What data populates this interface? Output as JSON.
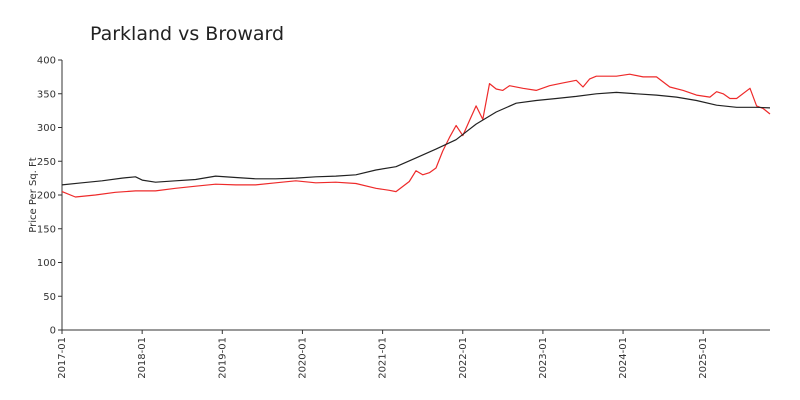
{
  "chart_data": {
    "type": "line",
    "title": "Parkland vs Broward",
    "xlabel": "",
    "ylabel": "Price Per Sq. Ft",
    "ylim": [
      0,
      400
    ],
    "yticks": [
      0,
      50,
      100,
      150,
      200,
      250,
      300,
      350,
      400
    ],
    "xticks": [
      "2017-01",
      "2018-01",
      "2019-01",
      "2020-01",
      "2021-01",
      "2022-01",
      "2023-01",
      "2024-01",
      "2025-01"
    ],
    "xlim": [
      "2017-01",
      "2025-11"
    ],
    "grid": false,
    "colors": {
      "red_series": "#ee2a2a",
      "black_series": "#222222"
    },
    "series": [
      {
        "key": "red_series",
        "points": [
          [
            "2017-01",
            205
          ],
          [
            "2017-03",
            197
          ],
          [
            "2017-06",
            200
          ],
          [
            "2017-09",
            204
          ],
          [
            "2017-12",
            206
          ],
          [
            "2018-03",
            206
          ],
          [
            "2018-06",
            210
          ],
          [
            "2018-09",
            213
          ],
          [
            "2018-12",
            216
          ],
          [
            "2019-03",
            215
          ],
          [
            "2019-06",
            215
          ],
          [
            "2019-09",
            218
          ],
          [
            "2019-12",
            221
          ],
          [
            "2020-03",
            218
          ],
          [
            "2020-06",
            219
          ],
          [
            "2020-09",
            217
          ],
          [
            "2020-12",
            210
          ],
          [
            "2021-02",
            207
          ],
          [
            "2021-03",
            205
          ],
          [
            "2021-05",
            220
          ],
          [
            "2021-06",
            236
          ],
          [
            "2021-07",
            230
          ],
          [
            "2021-08",
            233
          ],
          [
            "2021-09",
            240
          ],
          [
            "2021-10",
            265
          ],
          [
            "2021-11",
            285
          ],
          [
            "2021-12",
            303
          ],
          [
            "2022-01",
            288
          ],
          [
            "2022-02",
            310
          ],
          [
            "2022-03",
            332
          ],
          [
            "2022-04",
            312
          ],
          [
            "2022-05",
            365
          ],
          [
            "2022-06",
            357
          ],
          [
            "2022-07",
            355
          ],
          [
            "2022-08",
            362
          ],
          [
            "2022-10",
            358
          ],
          [
            "2022-12",
            355
          ],
          [
            "2023-02",
            362
          ],
          [
            "2023-04",
            366
          ],
          [
            "2023-06",
            370
          ],
          [
            "2023-07",
            360
          ],
          [
            "2023-08",
            372
          ],
          [
            "2023-09",
            376
          ],
          [
            "2023-12",
            376
          ],
          [
            "2024-02",
            379
          ],
          [
            "2024-04",
            375
          ],
          [
            "2024-06",
            375
          ],
          [
            "2024-08",
            360
          ],
          [
            "2024-10",
            355
          ],
          [
            "2024-12",
            348
          ],
          [
            "2025-02",
            345
          ],
          [
            "2025-03",
            353
          ],
          [
            "2025-04",
            350
          ],
          [
            "2025-05",
            343
          ],
          [
            "2025-06",
            343
          ],
          [
            "2025-08",
            358
          ],
          [
            "2025-09",
            332
          ],
          [
            "2025-10",
            328
          ],
          [
            "2025-11",
            320
          ]
        ]
      },
      {
        "key": "black_series",
        "points": [
          [
            "2017-01",
            215
          ],
          [
            "2017-04",
            218
          ],
          [
            "2017-07",
            221
          ],
          [
            "2017-10",
            225
          ],
          [
            "2017-12",
            227
          ],
          [
            "2018-01",
            222
          ],
          [
            "2018-03",
            219
          ],
          [
            "2018-06",
            221
          ],
          [
            "2018-09",
            223
          ],
          [
            "2018-12",
            228
          ],
          [
            "2019-03",
            226
          ],
          [
            "2019-06",
            224
          ],
          [
            "2019-09",
            224
          ],
          [
            "2019-12",
            225
          ],
          [
            "2020-03",
            227
          ],
          [
            "2020-06",
            228
          ],
          [
            "2020-09",
            230
          ],
          [
            "2020-12",
            237
          ],
          [
            "2021-03",
            242
          ],
          [
            "2021-06",
            255
          ],
          [
            "2021-09",
            268
          ],
          [
            "2021-12",
            282
          ],
          [
            "2022-03",
            305
          ],
          [
            "2022-06",
            323
          ],
          [
            "2022-09",
            336
          ],
          [
            "2022-12",
            340
          ],
          [
            "2023-03",
            343
          ],
          [
            "2023-06",
            346
          ],
          [
            "2023-09",
            350
          ],
          [
            "2023-12",
            352
          ],
          [
            "2024-03",
            350
          ],
          [
            "2024-06",
            348
          ],
          [
            "2024-09",
            345
          ],
          [
            "2024-12",
            340
          ],
          [
            "2025-03",
            333
          ],
          [
            "2025-06",
            330
          ],
          [
            "2025-09",
            330
          ],
          [
            "2025-11",
            329
          ]
        ]
      }
    ]
  }
}
